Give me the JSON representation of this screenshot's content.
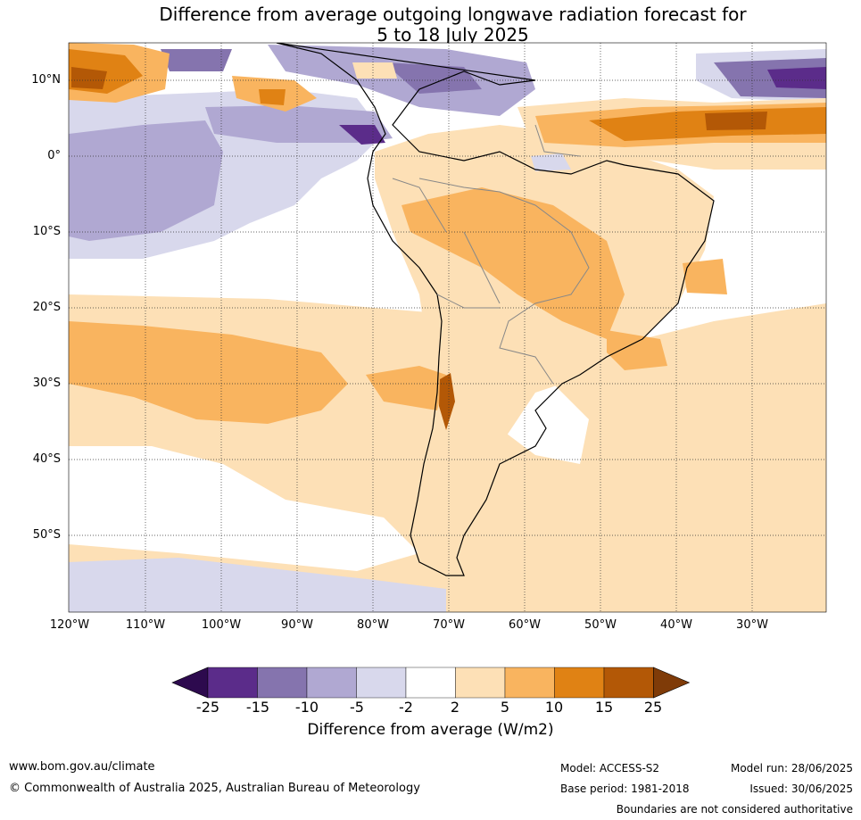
{
  "title_line1": "Difference from average outgoing longwave radiation forecast for",
  "title_line2": "5 to 18 July 2025",
  "lat_labels": [
    "10°N",
    "0°",
    "10°S",
    "20°S",
    "30°S",
    "40°S",
    "50°S"
  ],
  "lon_labels": [
    "120°W",
    "110°W",
    "100°W",
    "90°W",
    "80°W",
    "70°W",
    "60°W",
    "50°W",
    "40°W",
    "30°W"
  ],
  "colorbar": {
    "ticks": [
      "-25",
      "-15",
      "-10",
      "-5",
      "-2",
      "2",
      "5",
      "10",
      "15",
      "25"
    ],
    "colors": [
      "#2d0a4e",
      "#5b2c8a",
      "#8574ae",
      "#b0a8d2",
      "#d8d8ec",
      "#ffffff",
      "#fde0b6",
      "#f9b45f",
      "#e08214",
      "#b35806",
      "#7f3b08"
    ],
    "title": "Difference from average (W/m2)"
  },
  "footer": {
    "url": "www.bom.gov.au/climate",
    "copyright": "© Commonwealth of Australia 2025, Australian Bureau of Meteorology",
    "model": "Model: ACCESS-S2",
    "model_run": "Model run: 28/06/2025",
    "base_period": "Base period: 1981-2018",
    "issued": "Issued: 30/06/2025",
    "disclaimer": "Boundaries are not considered authoritative"
  }
}
